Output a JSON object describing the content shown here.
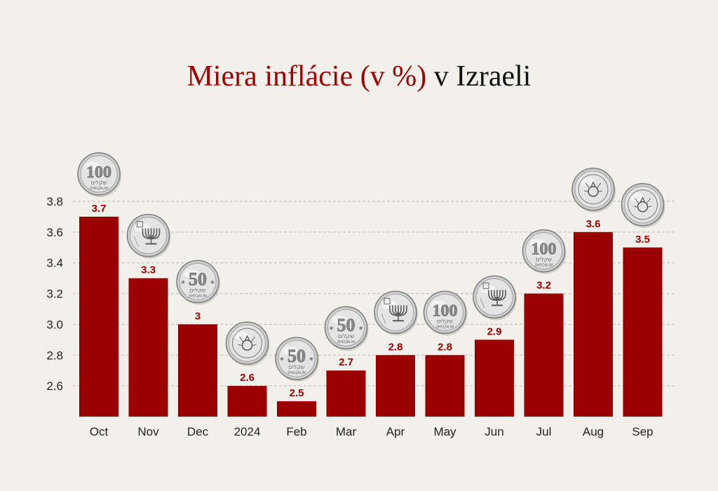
{
  "colors": {
    "background": "#f2f0eb",
    "bar": "#9b0000",
    "title_accent": "#a00000",
    "title_dark": "#111111",
    "grid": "#b9b9b9"
  },
  "title": {
    "part1": "Miera inflácie (v %)",
    "part2": "v Izraeli"
  },
  "chart_data": {
    "type": "bar",
    "title": "Miera inflácie (v %) v Izraeli",
    "xlabel": "",
    "ylabel": "",
    "categories": [
      "Oct",
      "Nov",
      "Dec",
      "2024",
      "Feb",
      "Mar",
      "Apr",
      "May",
      "Jun",
      "Jul",
      "Aug",
      "Sep"
    ],
    "values": [
      3.7,
      3.3,
      3.0,
      2.6,
      2.5,
      2.7,
      2.8,
      2.8,
      2.9,
      3.2,
      3.6,
      3.5
    ],
    "value_labels": [
      "3.7",
      "3.3",
      "3",
      "2.6",
      "2.5",
      "2.7",
      "2.8",
      "2.8",
      "2.9",
      "3.2",
      "3.6",
      "3.5"
    ],
    "yticks": [
      2.6,
      2.8,
      3.0,
      3.2,
      3.4,
      3.6,
      3.8
    ],
    "ytick_labels": [
      "2.6",
      "2.8",
      "3.0",
      "3.2",
      "3.4",
      "3.6",
      "3.8"
    ],
    "ylim": [
      2.4,
      3.8
    ],
    "grid": true,
    "legend": "none",
    "coin_icons": [
      "coin-100-icon",
      "coin-menorah-icon",
      "coin-50-icon",
      "coin-pomegranate-icon",
      "coin-50-icon",
      "coin-50-icon",
      "coin-menorah-icon",
      "coin-100-icon",
      "coin-menorah-icon",
      "coin-100-icon",
      "coin-pomegranate-icon",
      "coin-pomegranate-icon"
    ],
    "coin_texts": {
      "coin-100-icon": {
        "denomination": "100",
        "script": "שקלים",
        "caption": "SHEQALIM"
      },
      "coin-50-icon": {
        "denomination": "50",
        "script": "שקלים",
        "caption": "SHEQALIM"
      }
    }
  }
}
